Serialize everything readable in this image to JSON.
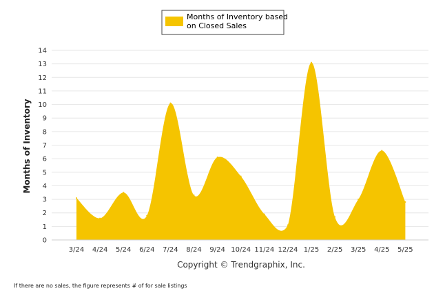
{
  "chart_data": {
    "type": "area",
    "categories": [
      "3/24",
      "4/24",
      "5/24",
      "6/24",
      "7/24",
      "8/24",
      "9/24",
      "10/24",
      "11/24",
      "12/24",
      "1/25",
      "2/25",
      "3/25",
      "4/25",
      "5/25"
    ],
    "series": [
      {
        "name": "Months of Inventory based on Closed Sales",
        "values": [
          3.1,
          1.6,
          3.5,
          1.8,
          10.1,
          3.3,
          6.1,
          4.7,
          1.9,
          1.1,
          13.1,
          1.7,
          3.0,
          6.6,
          2.8
        ]
      }
    ],
    "ylabel": "Months of Inventory",
    "ylim": [
      0,
      14
    ],
    "yticks": [
      "0",
      "1",
      "2",
      "3",
      "4",
      "5",
      "6",
      "7",
      "8",
      "9",
      "10",
      "11",
      "12",
      "13",
      "14"
    ],
    "grid": true,
    "legend_position": "top-center",
    "color": "#F5C400"
  },
  "legend": {
    "line1": "Months of Inventory based",
    "line2": "on Closed Sales"
  },
  "copyright": "Copyright © Trendgraphix, Inc.",
  "footnote": "If there are no sales, the figure represents # of for sale listings"
}
